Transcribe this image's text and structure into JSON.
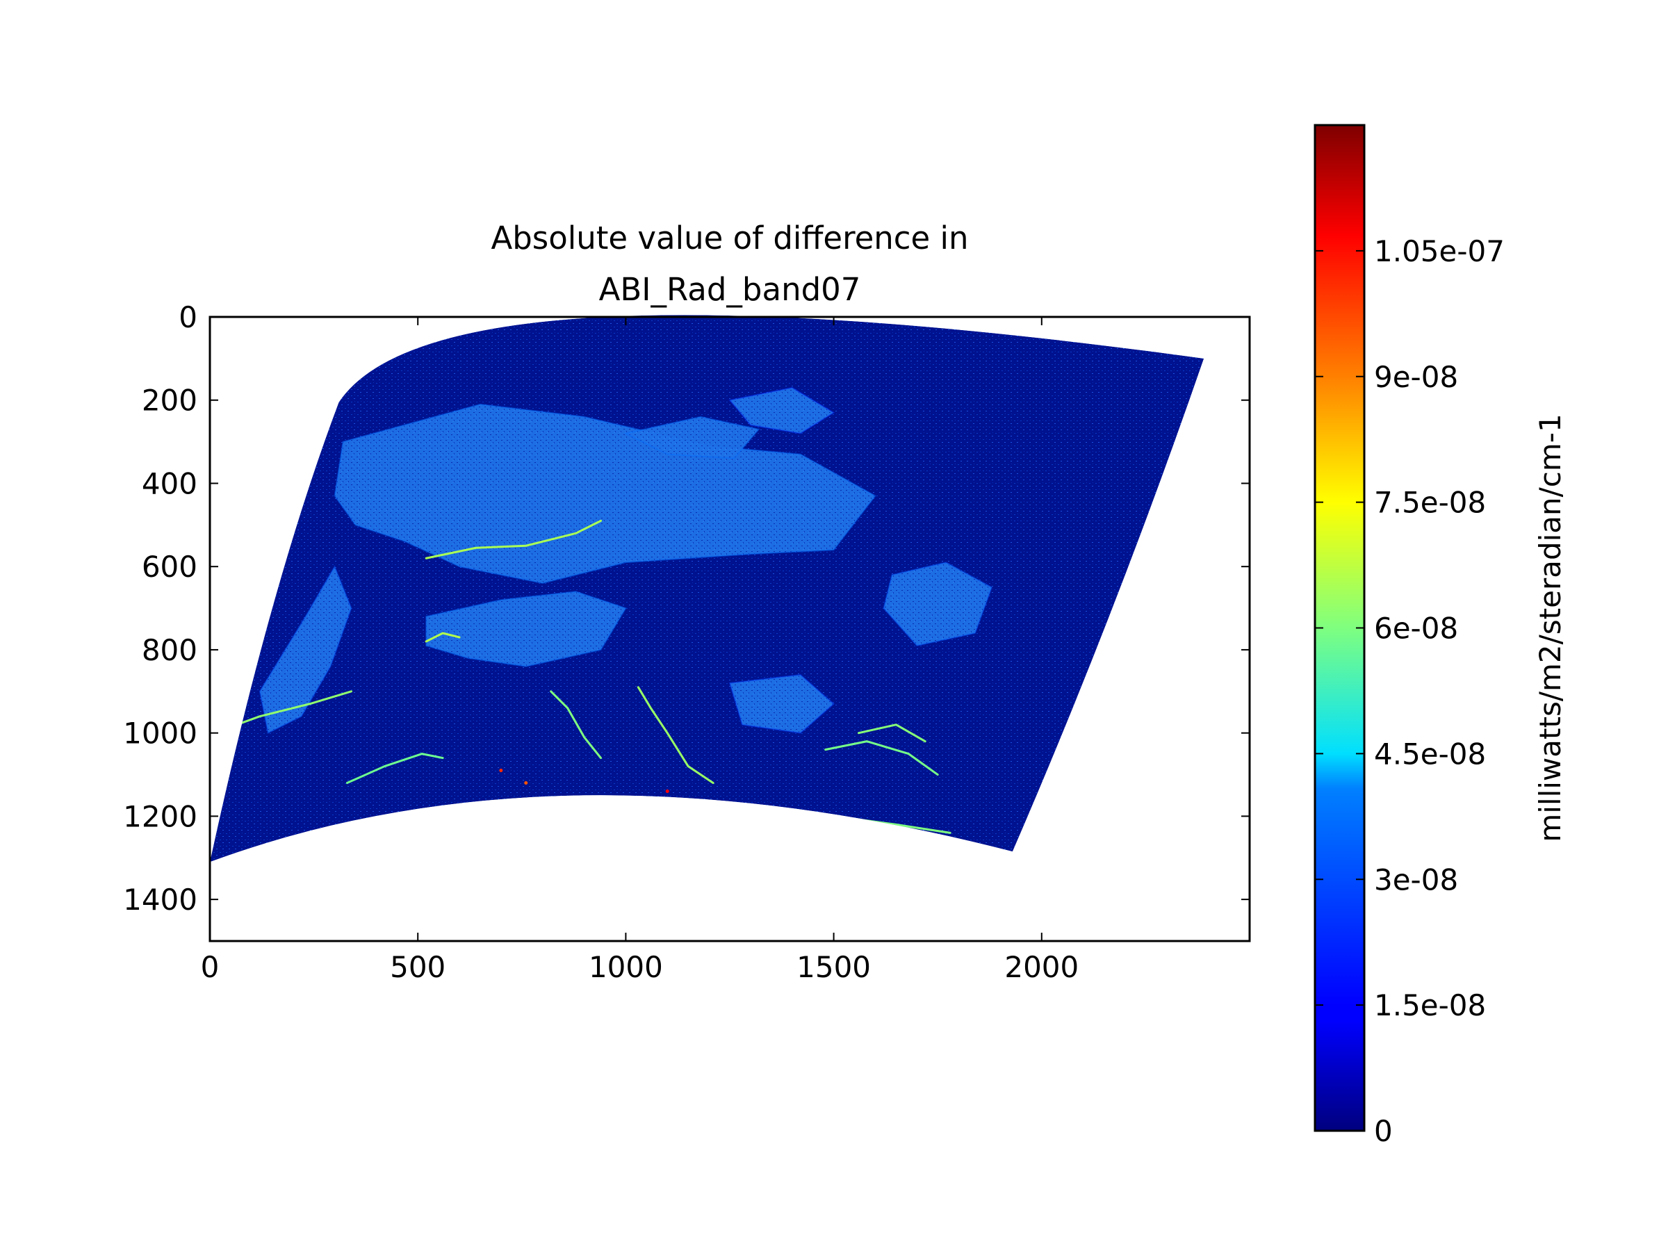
{
  "chart_data": {
    "type": "heatmap",
    "title": "Absolute value of difference in\nABI_Rad_band07",
    "title_lines": [
      "Absolute value of difference in",
      "ABI_Rad_band07"
    ],
    "xlabel": "",
    "ylabel": "",
    "xlim": [
      0,
      2500
    ],
    "ylim": [
      1500,
      0
    ],
    "y_inverted": true,
    "x_ticks": [
      0,
      500,
      1000,
      1500,
      2000
    ],
    "x_tick_labels": [
      "0",
      "500",
      "1000",
      "1500",
      "2000"
    ],
    "y_ticks": [
      0,
      200,
      400,
      600,
      800,
      1000,
      1200,
      1400
    ],
    "y_tick_labels": [
      "0",
      "200",
      "400",
      "600",
      "800",
      "1000",
      "1200",
      "1400"
    ],
    "grid": false,
    "colormap": "jet",
    "colorbar": {
      "label": "milliwatts/m2/steradian/cm-1",
      "range": [
        0,
        1.2e-07
      ],
      "ticks": [
        0,
        1.5e-08,
        3e-08,
        4.5e-08,
        6e-08,
        7.5e-08,
        9e-08,
        1.05e-07
      ],
      "tick_labels": [
        "0",
        "1.5e-08",
        "3e-08",
        "4.5e-08",
        "6e-08",
        "7.5e-08",
        "9e-08",
        "1.05e-07"
      ],
      "placement": "right"
    },
    "data_footprint": {
      "corners": {
        "top_left": [
          310,
          205
        ],
        "top_right": [
          2390,
          100
        ],
        "bottom_right": [
          1930,
          1285
        ],
        "bottom_left": [
          0,
          1310
        ]
      },
      "top_edge_apex": [
        950,
        0
      ],
      "bottom_edge_apex": [
        900,
        1150
      ],
      "left_edge_bulge": [
        150,
        700
      ],
      "right_edge_bulge": [
        2170,
        700
      ]
    },
    "regions": [
      {
        "level": 2.8e-08,
        "polygon": [
          [
            320,
            300
          ],
          [
            650,
            210
          ],
          [
            900,
            240
          ],
          [
            1200,
            310
          ],
          [
            1420,
            330
          ],
          [
            1600,
            430
          ],
          [
            1500,
            560
          ],
          [
            1300,
            570
          ],
          [
            1000,
            590
          ],
          [
            800,
            640
          ],
          [
            600,
            600
          ],
          [
            470,
            540
          ],
          [
            350,
            500
          ],
          [
            300,
            430
          ]
        ]
      },
      {
        "level": 2.8e-08,
        "polygon": [
          [
            520,
            720
          ],
          [
            700,
            680
          ],
          [
            880,
            660
          ],
          [
            1000,
            700
          ],
          [
            940,
            800
          ],
          [
            760,
            840
          ],
          [
            620,
            820
          ],
          [
            520,
            790
          ]
        ]
      },
      {
        "level": 2.5e-08,
        "polygon": [
          [
            1640,
            620
          ],
          [
            1770,
            590
          ],
          [
            1880,
            650
          ],
          [
            1840,
            760
          ],
          [
            1700,
            790
          ],
          [
            1620,
            700
          ]
        ]
      },
      {
        "level": 2.5e-08,
        "polygon": [
          [
            120,
            900
          ],
          [
            230,
            720
          ],
          [
            300,
            600
          ],
          [
            340,
            700
          ],
          [
            290,
            840
          ],
          [
            220,
            960
          ],
          [
            140,
            1000
          ]
        ]
      },
      {
        "level": 2.2e-08,
        "polygon": [
          [
            1250,
            880
          ],
          [
            1420,
            860
          ],
          [
            1500,
            930
          ],
          [
            1420,
            1000
          ],
          [
            1280,
            980
          ]
        ]
      },
      {
        "level": 2.8e-08,
        "polygon": [
          [
            1000,
            280
          ],
          [
            1180,
            240
          ],
          [
            1320,
            270
          ],
          [
            1260,
            340
          ],
          [
            1100,
            330
          ]
        ]
      },
      {
        "level": 2e-08,
        "polygon": [
          [
            1250,
            200
          ],
          [
            1400,
            170
          ],
          [
            1500,
            230
          ],
          [
            1420,
            280
          ],
          [
            1300,
            260
          ]
        ]
      }
    ],
    "streaks": [
      {
        "level": 6.2e-08,
        "points": [
          [
            10,
            1000
          ],
          [
            120,
            960
          ],
          [
            240,
            930
          ],
          [
            340,
            900
          ]
        ]
      },
      {
        "level": 6.5e-08,
        "points": [
          [
            520,
            580
          ],
          [
            640,
            555
          ],
          [
            760,
            550
          ],
          [
            880,
            520
          ],
          [
            940,
            490
          ]
        ]
      },
      {
        "level": 6e-08,
        "points": [
          [
            820,
            900
          ],
          [
            860,
            940
          ],
          [
            900,
            1010
          ],
          [
            940,
            1060
          ]
        ]
      },
      {
        "level": 6.3e-08,
        "points": [
          [
            1030,
            890
          ],
          [
            1060,
            940
          ],
          [
            1100,
            1000
          ],
          [
            1150,
            1080
          ],
          [
            1210,
            1120
          ]
        ]
      },
      {
        "level": 5.8e-08,
        "points": [
          [
            330,
            1120
          ],
          [
            420,
            1080
          ],
          [
            510,
            1050
          ],
          [
            560,
            1060
          ]
        ]
      },
      {
        "level": 6e-08,
        "points": [
          [
            1350,
            1180
          ],
          [
            1500,
            1200
          ],
          [
            1650,
            1220
          ],
          [
            1780,
            1240
          ]
        ]
      },
      {
        "level": 6.6e-08,
        "points": [
          [
            520,
            780
          ],
          [
            560,
            760
          ],
          [
            600,
            770
          ]
        ]
      },
      {
        "level": 5.9e-08,
        "points": [
          [
            1480,
            1040
          ],
          [
            1580,
            1020
          ],
          [
            1680,
            1050
          ],
          [
            1750,
            1100
          ]
        ]
      },
      {
        "level": 6.1e-08,
        "points": [
          [
            1560,
            1000
          ],
          [
            1650,
            980
          ],
          [
            1720,
            1020
          ]
        ]
      }
    ],
    "hotspots": [
      {
        "level": 1e-07,
        "point": [
          700,
          1090
        ]
      },
      {
        "level": 1.05e-07,
        "point": [
          1100,
          1140
        ]
      },
      {
        "level": 9.5e-08,
        "point": [
          760,
          1120
        ]
      }
    ]
  }
}
